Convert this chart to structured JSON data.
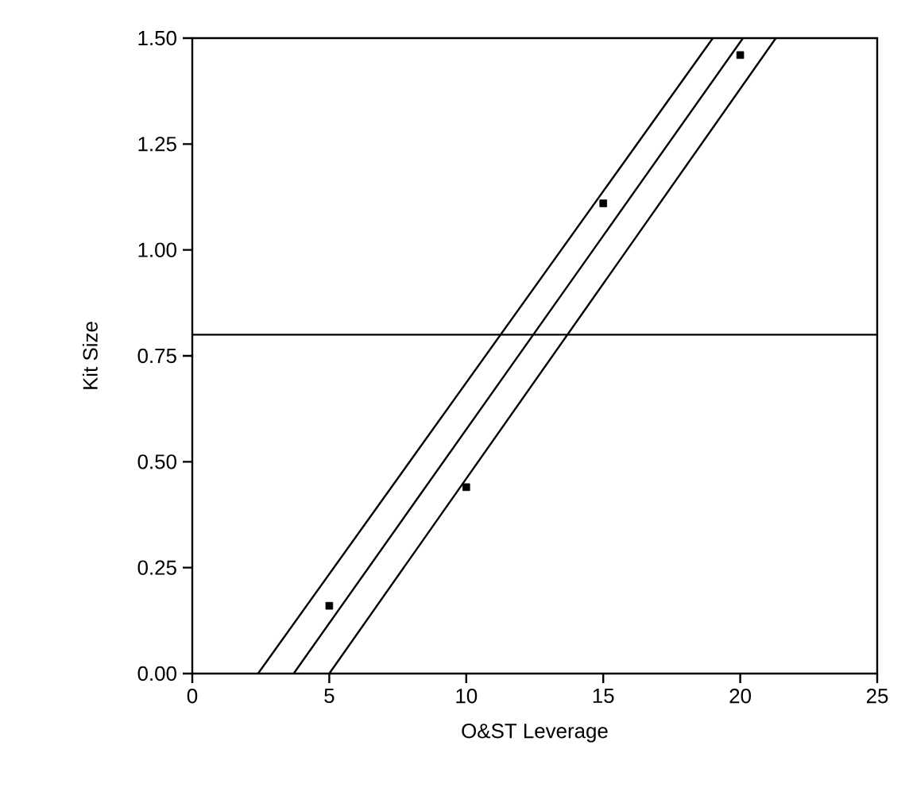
{
  "chart_data": {
    "type": "scatter",
    "xlabel": "O&ST Leverage",
    "ylabel": "Kit Size",
    "xlim": [
      0,
      25
    ],
    "ylim": [
      0,
      1.5
    ],
    "xticks": [
      0,
      5,
      10,
      15,
      20,
      25
    ],
    "yticks": [
      {
        "value": 0,
        "label": "0.00"
      },
      {
        "value": 0.25,
        "label": "0.25"
      },
      {
        "value": 0.5,
        "label": "0.50"
      },
      {
        "value": 0.75,
        "label": "0.75"
      },
      {
        "value": 1,
        "label": "1.00"
      },
      {
        "value": 1.25,
        "label": "1.25"
      },
      {
        "value": 1.5,
        "label": "1.50"
      }
    ],
    "grid": false,
    "series": [
      {
        "color": "#000000",
        "marker": "square",
        "x": [
          5,
          10,
          15,
          20
        ],
        "values": [
          0.16,
          0.44,
          1.11,
          1.46
        ]
      },
      {
        "type": "line",
        "color": "#000000",
        "marker": "none",
        "line_style": "solid",
        "x": [
          2.4,
          19.0
        ],
        "values": [
          0,
          1.5
        ]
      },
      {
        "type": "line",
        "color": "#000000",
        "marker": "none",
        "line_style": "solid",
        "x": [
          3.7,
          20.1
        ],
        "values": [
          0,
          1.5
        ]
      },
      {
        "type": "line",
        "color": "#000000",
        "marker": "none",
        "line_style": "solid",
        "x": [
          5.0,
          21.3
        ],
        "values": [
          0,
          1.5
        ]
      }
    ],
    "ref_lines": [
      {
        "axis": "y",
        "value": 0.8,
        "color": "#000000"
      }
    ]
  }
}
